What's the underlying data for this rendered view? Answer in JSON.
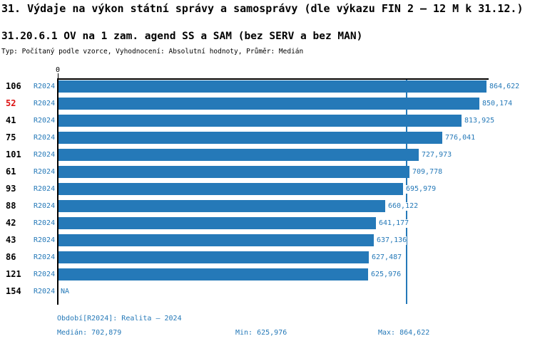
{
  "title": "31. Výdaje na výkon státní správy a samosprávy (dle výkazu FIN 2 – 12 M k 31.12.)",
  "subtitle": "31.20.6.1 OV na 1 zam. agend SS a SAM (bez SERV a bez MAN)",
  "meta_line": "Typ: Počítaný podle vzorce, Vyhodnocení: Absolutní hodnoty, Průměr: Medián",
  "axis": {
    "zero_label": "0"
  },
  "colors": {
    "bar": "#2579b8",
    "blue_text": "#2579b8",
    "median_line": "#2579b8",
    "highlight_row": "#dd1111",
    "text": "#000000"
  },
  "rows": [
    {
      "id": "106",
      "period": "R2024",
      "value": 864622,
      "value_label": "864,622",
      "highlight": false
    },
    {
      "id": "52",
      "period": "R2024",
      "value": 850174,
      "value_label": "850,174",
      "highlight": true
    },
    {
      "id": "41",
      "period": "R2024",
      "value": 813925,
      "value_label": "813,925",
      "highlight": false
    },
    {
      "id": "75",
      "period": "R2024",
      "value": 776041,
      "value_label": "776,041",
      "highlight": false
    },
    {
      "id": "101",
      "period": "R2024",
      "value": 727973,
      "value_label": "727,973",
      "highlight": false
    },
    {
      "id": "61",
      "period": "R2024",
      "value": 709778,
      "value_label": "709,778",
      "highlight": false
    },
    {
      "id": "93",
      "period": "R2024",
      "value": 695979,
      "value_label": "695,979",
      "highlight": false
    },
    {
      "id": "88",
      "period": "R2024",
      "value": 660122,
      "value_label": "660,122",
      "highlight": false
    },
    {
      "id": "42",
      "period": "R2024",
      "value": 641177,
      "value_label": "641,177",
      "highlight": false
    },
    {
      "id": "43",
      "period": "R2024",
      "value": 637136,
      "value_label": "637,136",
      "highlight": false
    },
    {
      "id": "86",
      "period": "R2024",
      "value": 627487,
      "value_label": "627,487",
      "highlight": false
    },
    {
      "id": "121",
      "period": "R2024",
      "value": 625976,
      "value_label": "625,976",
      "highlight": false
    },
    {
      "id": "154",
      "period": "R2024",
      "value": null,
      "value_label": "NA",
      "highlight": false
    }
  ],
  "footer": {
    "period_line": "Období[R2024]: Realita – 2024",
    "median_label": "Medián: 702,879",
    "min_label": "Min: 625,976",
    "max_label": "Max: 864,622"
  },
  "chart_data": {
    "type": "bar",
    "orientation": "horizontal",
    "title": "31. Výdaje na výkon státní správy a samosprávy (dle výkazu FIN 2 – 12 M k 31.12.)",
    "subtitle": "31.20.6.1 OV na 1 zam. agend SS a SAM (bez SERV a bez MAN)",
    "categories": [
      "106",
      "52",
      "41",
      "75",
      "101",
      "61",
      "93",
      "88",
      "42",
      "43",
      "86",
      "121",
      "154"
    ],
    "series": [
      {
        "name": "R2024",
        "values": [
          864622,
          850174,
          813925,
          776041,
          727973,
          709778,
          695979,
          660122,
          641177,
          637136,
          627487,
          625976,
          null
        ]
      }
    ],
    "value_labels": [
      "864,622",
      "850,174",
      "813,925",
      "776,041",
      "727,973",
      "709,778",
      "695,979",
      "660,122",
      "641,177",
      "637,136",
      "627,487",
      "625,976",
      "NA"
    ],
    "highlight_category": "52",
    "median": 702879,
    "min": 625976,
    "max": 864622,
    "xlim": [
      0,
      864622
    ],
    "legend": "none",
    "grid": "off"
  }
}
